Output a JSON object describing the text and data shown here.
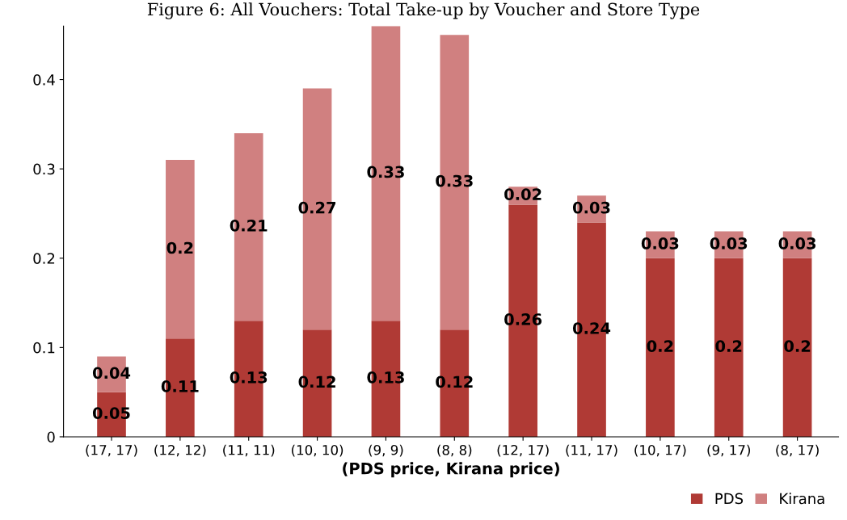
{
  "chart_data": {
    "type": "bar",
    "title": "Figure 6: All Vouchers: Total Take-up by Voucher and Store Type",
    "xlabel": "(PDS price, Kirana price)",
    "categories": [
      "(17, 17)",
      "(12, 12)",
      "(11, 11)",
      "(10, 10)",
      "(9, 9)",
      "(8, 8)",
      "(12, 17)",
      "(11, 17)",
      "(10, 17)",
      "(9, 17)",
      "(8, 17)"
    ],
    "series": [
      {
        "name": "PDS",
        "color": "#b03a35",
        "values": [
          0.05,
          0.11,
          0.13,
          0.12,
          0.13,
          0.12,
          0.26,
          0.24,
          0.2,
          0.2,
          0.2
        ]
      },
      {
        "name": "Kirana",
        "color": "#d08080",
        "values": [
          0.04,
          0.2,
          0.21,
          0.27,
          0.33,
          0.33,
          0.02,
          0.03,
          0.03,
          0.03,
          0.03
        ]
      }
    ],
    "stacked": true,
    "data_labels": true,
    "ylim": [
      0,
      0.46
    ],
    "yticks": [
      0,
      0.1,
      0.2,
      0.3,
      0.4
    ],
    "grid": false,
    "legend": "bottom right"
  }
}
